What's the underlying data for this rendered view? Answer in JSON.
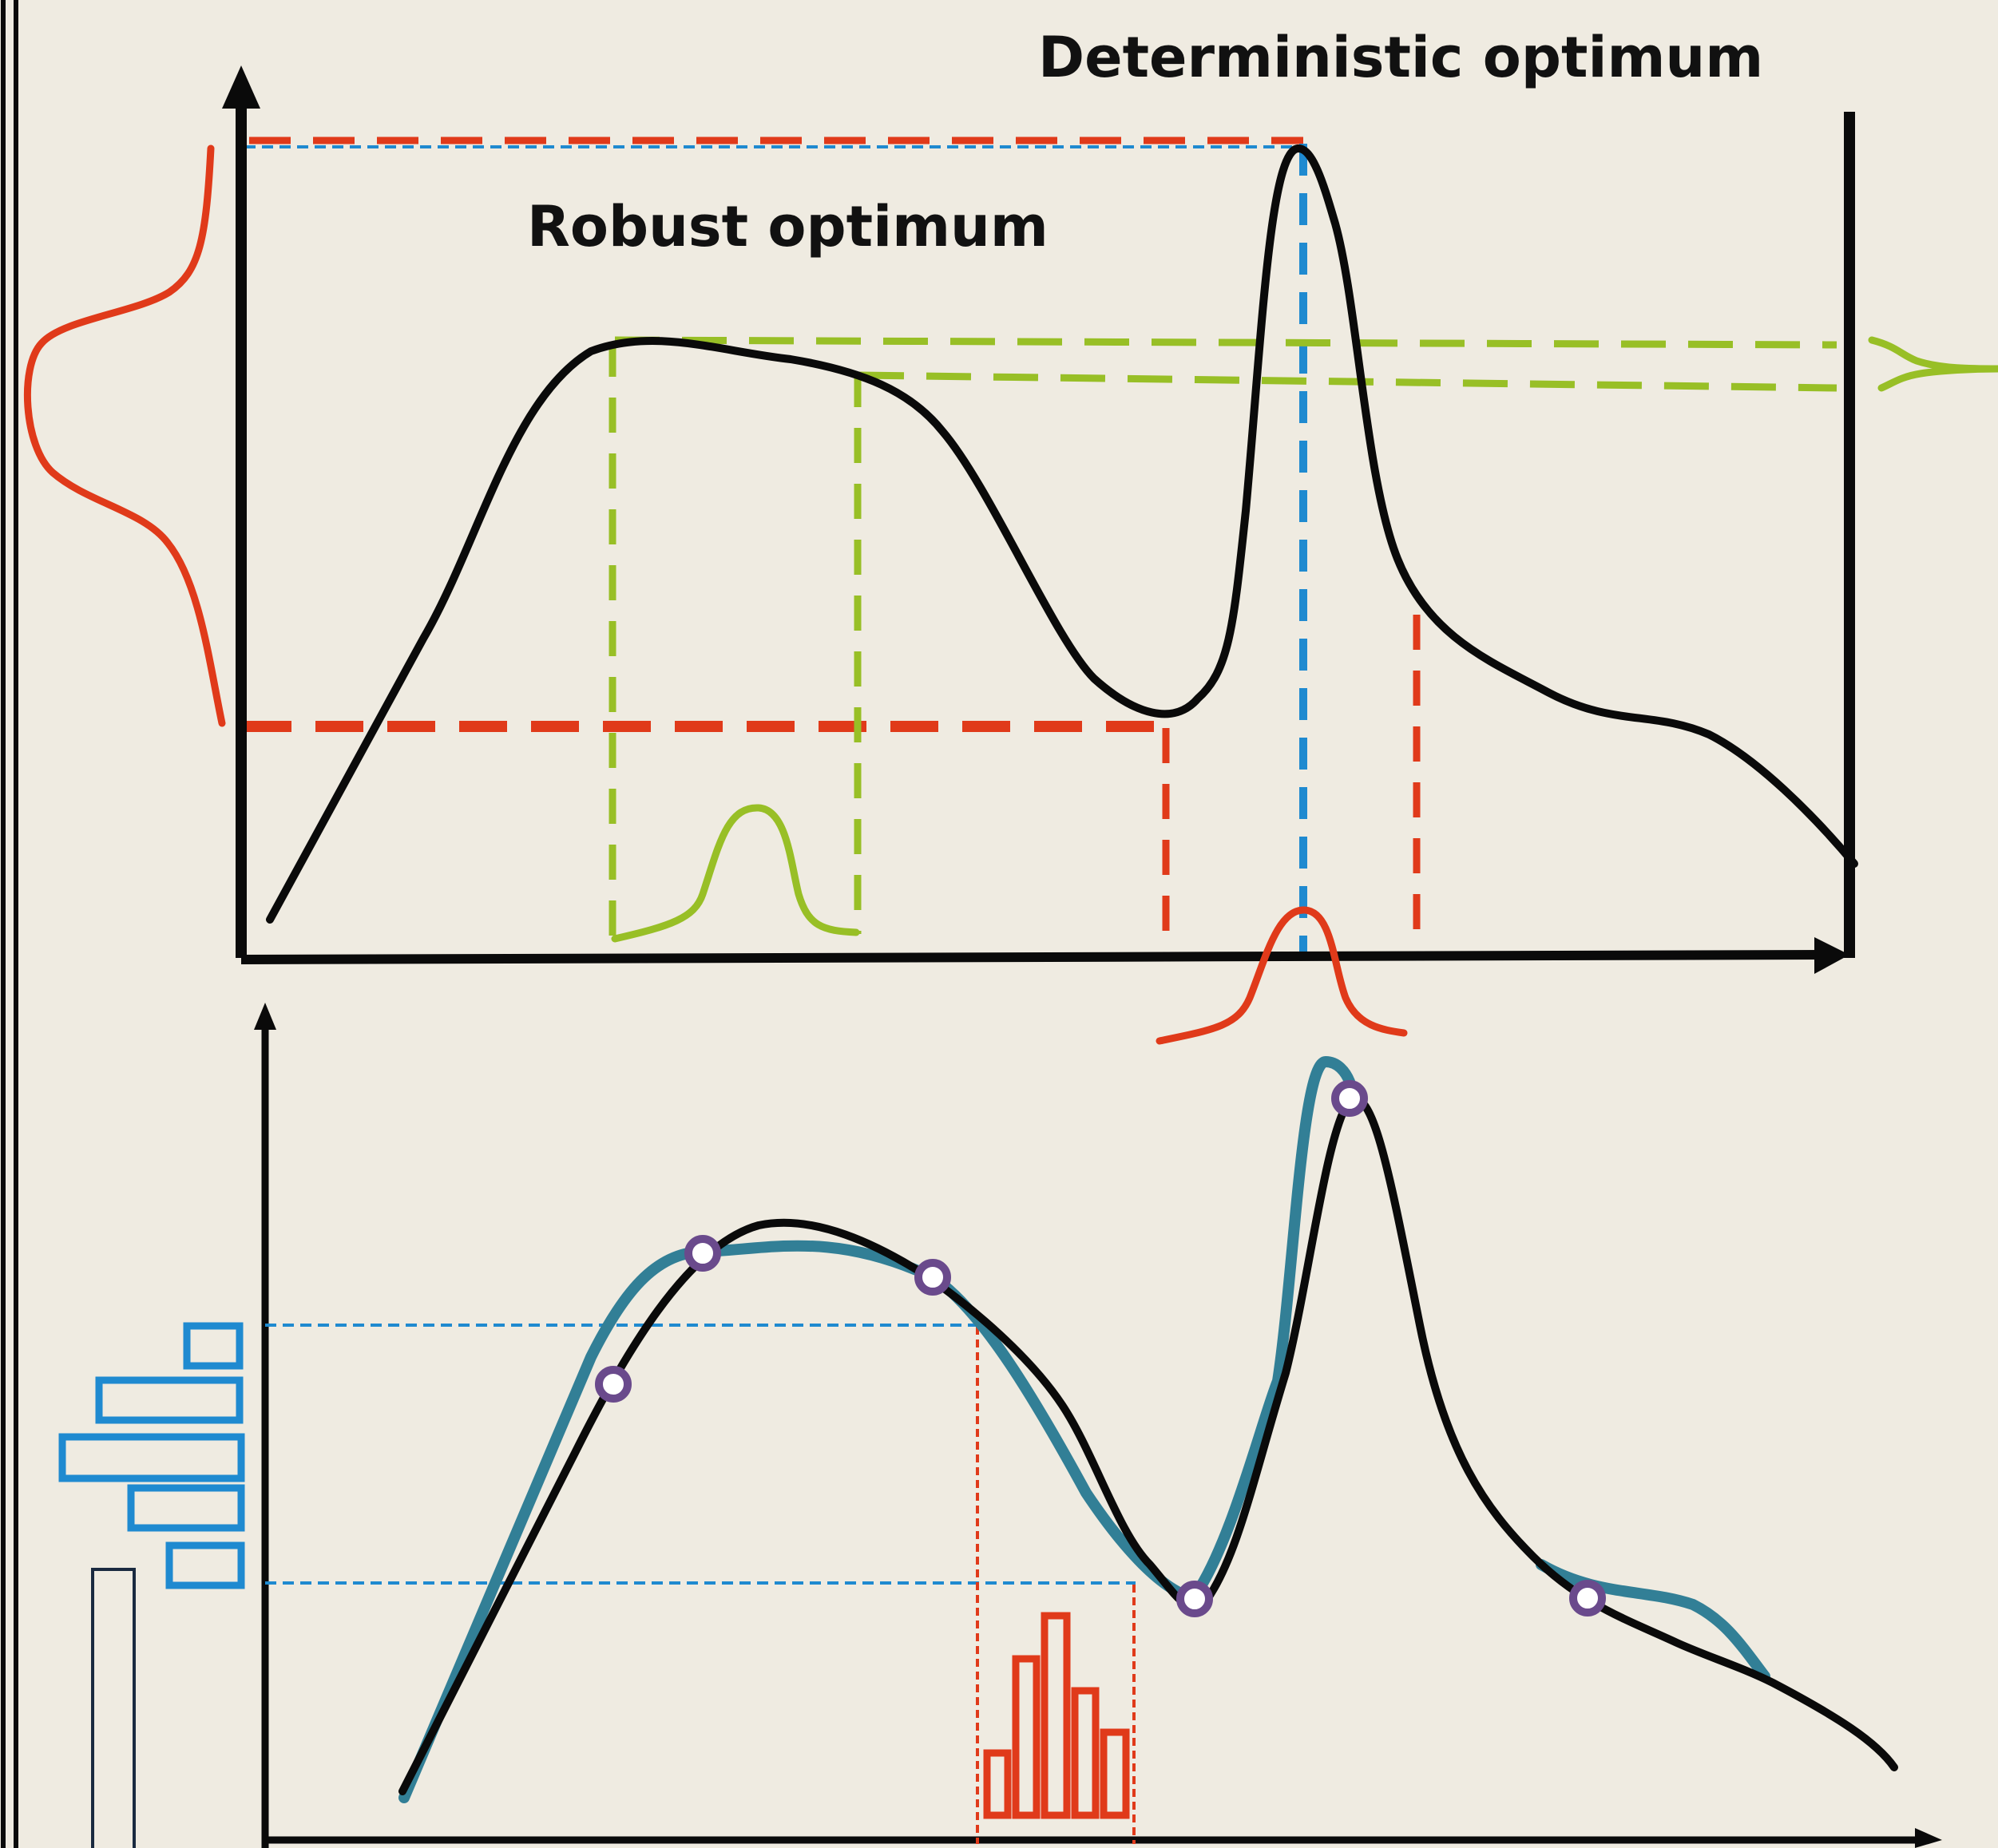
{
  "labels": {
    "deterministic": "Deterministic optimum",
    "robust": "Robust optimum"
  },
  "colors": {
    "background": "#efebe1",
    "curve": "#0a0a0a",
    "red": "#e03a1a",
    "green": "#98bf26",
    "blue": "#1f8ad0",
    "teal": "#327f96",
    "purple": "#6a4a8c",
    "navy": "#1a2a40"
  }
}
